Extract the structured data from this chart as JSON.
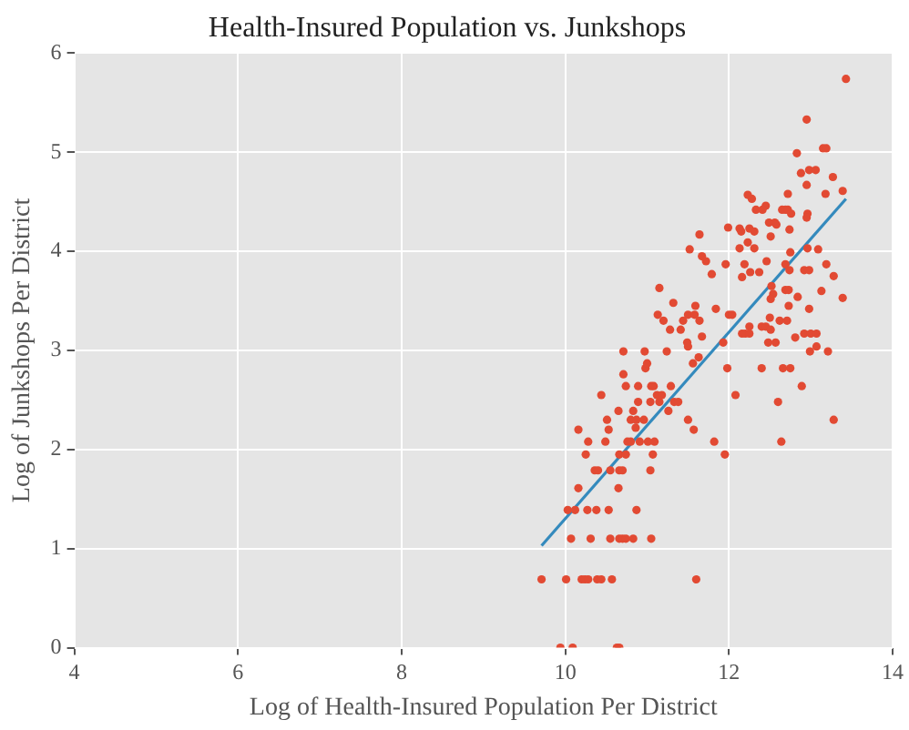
{
  "chart_data": {
    "type": "scatter",
    "title": "Health-Insured Population vs. Junkshops",
    "xlabel": "Log of Health-Insured Population Per District",
    "ylabel": "Log of Junkshops Per District",
    "xlim": [
      4,
      14
    ],
    "ylim": [
      0,
      6
    ],
    "xticks": [
      4,
      6,
      8,
      10,
      12,
      14
    ],
    "yticks": [
      0,
      1,
      2,
      3,
      4,
      5,
      6
    ],
    "grid": true,
    "legend": false,
    "series": [
      {
        "marker": "circle",
        "color": "#e24a33",
        "x": [
          9.94,
          10.09,
          10.63,
          10.66,
          9.71,
          10.01,
          10.2,
          10.24,
          10.28,
          10.39,
          10.44,
          10.57,
          11.6,
          10.07,
          10.31,
          10.55,
          10.66,
          10.7,
          10.74,
          10.83,
          11.05,
          10.03,
          10.12,
          10.27,
          10.38,
          10.53,
          10.87,
          10.16,
          10.65,
          10.36,
          10.4,
          10.55,
          10.66,
          10.7,
          11.04,
          10.25,
          10.66,
          10.74,
          11.07,
          11.95,
          10.28,
          10.49,
          10.76,
          10.8,
          10.91,
          11.01,
          11.09,
          11.82,
          12.64,
          10.16,
          10.53,
          11.57,
          10.86,
          10.51,
          10.8,
          10.87,
          10.96,
          11.5,
          13.28,
          10.65,
          10.83,
          11.26,
          10.89,
          11.04,
          11.15,
          11.33,
          11.38,
          12.6,
          10.44,
          11.12,
          11.18,
          12.08,
          10.74,
          10.89,
          11.05,
          11.08,
          11.29,
          12.89,
          10.71,
          10.98,
          11.98,
          12.4,
          12.66,
          12.75,
          11.0,
          11.56,
          11.63,
          10.71,
          10.97,
          11.24,
          12.99,
          13.21,
          13.07,
          11.5,
          11.49,
          11.93,
          12.48,
          12.57,
          12.81,
          13.43,
          12.95,
          13.15,
          13.19,
          12.83,
          12.98,
          13.06,
          12.88,
          13.27,
          12.95,
          13.39,
          13.18,
          12.72,
          12.23,
          12.28,
          12.45,
          12.33,
          12.41,
          12.65,
          12.69,
          12.72,
          12.96,
          12.76,
          12.95,
          12.49,
          12.56,
          12.58,
          11.99,
          12.25,
          12.13,
          12.74,
          12.15,
          12.31,
          11.64,
          12.51,
          12.23,
          12.13,
          12.31,
          12.96,
          11.52,
          13.09,
          12.75,
          11.67,
          11.72,
          12.46,
          11.96,
          12.19,
          12.69,
          13.19,
          12.74,
          12.92,
          12.98,
          12.26,
          12.37,
          11.79,
          13.28,
          12.16,
          12.52,
          11.15,
          12.69,
          12.73,
          13.13,
          12.54,
          12.84,
          13.39,
          12.51,
          11.32,
          11.59,
          12.73,
          12.98,
          11.84,
          11.13,
          11.5,
          11.58,
          12.0,
          12.04,
          12.5,
          11.2,
          11.44,
          11.64,
          12.62,
          12.71,
          12.25,
          12.4,
          12.45,
          11.28,
          11.41,
          12.51,
          12.16,
          12.2,
          12.25,
          12.92,
          13.0,
          13.07,
          11.67
        ],
        "values": [
          0,
          0,
          0,
          0,
          0.69,
          0.69,
          0.69,
          0.69,
          0.69,
          0.69,
          0.69,
          0.69,
          0.69,
          1.1,
          1.1,
          1.1,
          1.1,
          1.1,
          1.1,
          1.1,
          1.1,
          1.39,
          1.39,
          1.39,
          1.39,
          1.39,
          1.39,
          1.61,
          1.61,
          1.79,
          1.79,
          1.79,
          1.79,
          1.79,
          1.79,
          1.95,
          1.95,
          1.95,
          1.95,
          1.95,
          2.08,
          2.08,
          2.08,
          2.08,
          2.08,
          2.08,
          2.08,
          2.08,
          2.08,
          2.2,
          2.2,
          2.2,
          2.22,
          2.3,
          2.3,
          2.3,
          2.3,
          2.3,
          2.3,
          2.39,
          2.39,
          2.39,
          2.48,
          2.48,
          2.48,
          2.48,
          2.48,
          2.48,
          2.55,
          2.55,
          2.55,
          2.55,
          2.64,
          2.64,
          2.64,
          2.64,
          2.64,
          2.64,
          2.76,
          2.82,
          2.82,
          2.82,
          2.82,
          2.82,
          2.87,
          2.87,
          2.93,
          2.99,
          2.99,
          2.99,
          2.99,
          2.99,
          3.04,
          3.04,
          3.08,
          3.08,
          3.08,
          3.08,
          3.13,
          5.74,
          5.33,
          5.04,
          5.04,
          4.99,
          4.82,
          4.82,
          4.79,
          4.75,
          4.67,
          4.61,
          4.58,
          4.58,
          4.57,
          4.53,
          4.46,
          4.42,
          4.42,
          4.42,
          4.42,
          4.42,
          4.38,
          4.38,
          4.34,
          4.29,
          4.29,
          4.27,
          4.24,
          4.23,
          4.23,
          4.22,
          4.2,
          4.2,
          4.17,
          4.15,
          4.09,
          4.03,
          4.03,
          4.03,
          4.02,
          4.02,
          3.99,
          3.95,
          3.9,
          3.9,
          3.87,
          3.87,
          3.87,
          3.87,
          3.81,
          3.81,
          3.81,
          3.79,
          3.79,
          3.77,
          3.75,
          3.74,
          3.65,
          3.63,
          3.61,
          3.61,
          3.6,
          3.57,
          3.54,
          3.53,
          3.52,
          3.48,
          3.45,
          3.45,
          3.42,
          3.42,
          3.36,
          3.36,
          3.36,
          3.36,
          3.36,
          3.33,
          3.3,
          3.3,
          3.3,
          3.3,
          3.3,
          3.24,
          3.24,
          3.24,
          3.21,
          3.21,
          3.21,
          3.17,
          3.17,
          3.17,
          3.17,
          3.17,
          3.17,
          3.14
        ]
      },
      {
        "type": "line",
        "color": "#348abd",
        "x": [
          9.71,
          13.43
        ],
        "values": [
          1.03,
          4.53
        ]
      }
    ]
  }
}
